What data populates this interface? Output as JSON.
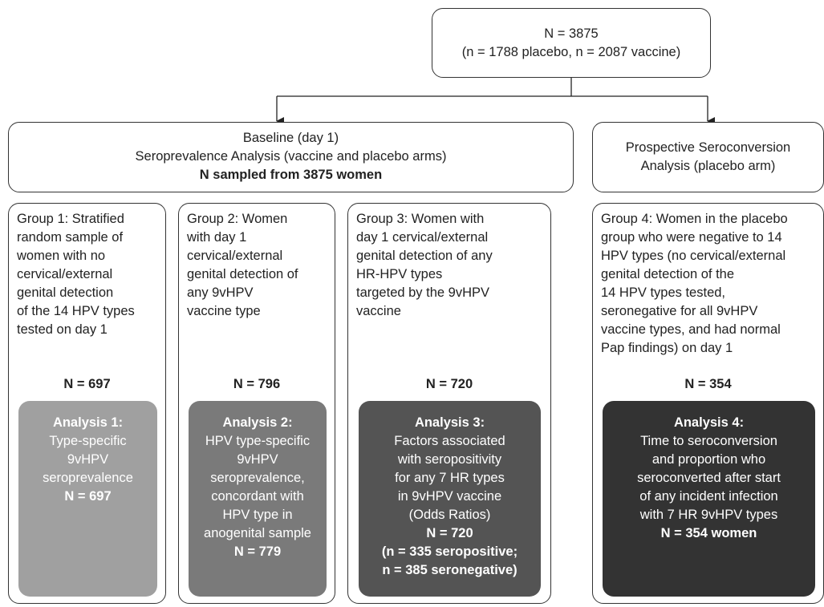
{
  "top": {
    "lines": [
      "N = 3875",
      "(n = 1788 placebo, n = 2087 vaccine)"
    ]
  },
  "baseline": {
    "lines": [
      "Baseline (day 1)",
      "Seroprevalence Analysis (vaccine and placebo arms)"
    ],
    "bold": "N sampled from 3875 women"
  },
  "prospective": {
    "lines": [
      "Prospective Seroconversion",
      "Analysis (placebo arm)"
    ]
  },
  "groups": [
    {
      "lines": [
        "Group 1: Stratified",
        "random sample of",
        "women with no",
        "cervical/external",
        "genital detection",
        "of the 14 HPV types",
        "tested on day 1"
      ],
      "n": "N = 697",
      "analysis": {
        "title": "Analysis 1:",
        "lines": [
          "Type-specific",
          "9vHPV",
          "seroprevalence"
        ],
        "n_lines": [
          "N = 697"
        ]
      }
    },
    {
      "lines": [
        "Group 2: Women",
        "with day 1",
        "cervical/external",
        "genital detection of",
        "any 9vHPV",
        "vaccine type"
      ],
      "n": "N = 796",
      "analysis": {
        "title": "Analysis 2:",
        "lines": [
          "HPV type-specific",
          "9vHPV",
          "seroprevalence,",
          "concordant with",
          "HPV type in",
          "anogenital sample"
        ],
        "n_lines": [
          "N = 779"
        ]
      }
    },
    {
      "lines": [
        "Group 3: Women with",
        "day 1 cervical/external",
        "genital detection of any",
        "HR-HPV types",
        "targeted by the 9vHPV",
        "vaccine"
      ],
      "n": "N = 720",
      "analysis": {
        "title": "Analysis 3:",
        "lines": [
          "Factors associated",
          "with seropositivity",
          "for any 7 HR types",
          "in 9vHPV vaccine",
          "(Odds Ratios)"
        ],
        "n_lines": [
          "N = 720",
          "(n = 335 seropositive;",
          "n = 385 seronegative)"
        ]
      }
    },
    {
      "lines": [
        "Group 4: Women in the placebo",
        "group who were negative to 14",
        "HPV types (no cervical/external",
        "genital detection of the",
        "14 HPV types tested,",
        "seronegative for all 9vHPV",
        "vaccine types, and had normal",
        "Pap findings) on day 1"
      ],
      "n": "N = 354",
      "analysis": {
        "title": "Analysis 4:",
        "lines": [
          "Time to seroconversion",
          "and proportion who",
          "seroconverted after start",
          "of any incident infection",
          "with 7 HR 9vHPV types"
        ],
        "n_lines": [
          "N = 354 women"
        ]
      }
    }
  ]
}
